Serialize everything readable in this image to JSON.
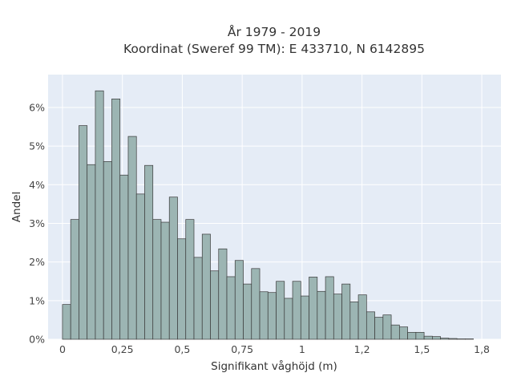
{
  "chart_data": {
    "type": "bar",
    "title_lines": [
      "År 1979 - 2019",
      "Koordinat (Sweref 99 TM): E 433710, N 6142895"
    ],
    "xlabel": "Signifikant våghöjd (m)",
    "ylabel": "Andel",
    "xlim": [
      -0.06,
      1.83
    ],
    "ylim": [
      0,
      0.0685
    ],
    "x_ticks": [
      {
        "value": 0,
        "label": "0"
      },
      {
        "value": 0.25,
        "label": "0,25"
      },
      {
        "value": 0.5,
        "label": "0,5"
      },
      {
        "value": 0.75,
        "label": "0,75"
      },
      {
        "value": 1,
        "label": "1"
      },
      {
        "value": 1.25,
        "label": "1,2"
      },
      {
        "value": 1.5,
        "label": "1,5"
      },
      {
        "value": 1.75,
        "label": "1,8"
      }
    ],
    "y_ticks": [
      {
        "value": 0,
        "label": "0%"
      },
      {
        "value": 0.01,
        "label": "1%"
      },
      {
        "value": 0.02,
        "label": "2%"
      },
      {
        "value": 0.03,
        "label": "3%"
      },
      {
        "value": 0.04,
        "label": "4%"
      },
      {
        "value": 0.05,
        "label": "5%"
      },
      {
        "value": 0.06,
        "label": "6%"
      }
    ],
    "grid": true,
    "bin_width": 0.0343,
    "bin_starts": [
      0,
      0.0343,
      0.0686,
      0.1029,
      0.1372,
      0.1715,
      0.2058,
      0.2401,
      0.2744,
      0.3087,
      0.343,
      0.3773,
      0.4116,
      0.4459,
      0.4802,
      0.5145,
      0.5488,
      0.5831,
      0.6174,
      0.6517,
      0.686,
      0.7203,
      0.7546,
      0.7889,
      0.8232,
      0.8575,
      0.8918,
      0.9261,
      0.9604,
      0.9947,
      1.029,
      1.0633,
      1.0976,
      1.1319,
      1.1662,
      1.2005,
      1.2348,
      1.2691,
      1.3034,
      1.3377,
      1.372,
      1.4063,
      1.4406,
      1.4749,
      1.5092,
      1.5435,
      1.5778,
      1.6121,
      1.6464,
      1.6807
    ],
    "values": [
      0.009,
      0.031,
      0.0553,
      0.0452,
      0.0643,
      0.046,
      0.0622,
      0.0425,
      0.0525,
      0.0376,
      0.045,
      0.031,
      0.0303,
      0.0368,
      0.026,
      0.031,
      0.0212,
      0.0272,
      0.0177,
      0.0234,
      0.0162,
      0.0204,
      0.0143,
      0.0183,
      0.0123,
      0.0121,
      0.015,
      0.0106,
      0.015,
      0.0112,
      0.0161,
      0.0124,
      0.0162,
      0.0117,
      0.0143,
      0.0097,
      0.0115,
      0.0071,
      0.0057,
      0.0063,
      0.0037,
      0.0032,
      0.0018,
      0.0018,
      0.0008,
      0.0007,
      0.0003,
      0.0002,
      0.0001,
      0.0001
    ],
    "colors": {
      "plot_bg": "#e5ecf6",
      "bar_fill": "#9cb5b3",
      "bar_stroke": "#3a3a3a",
      "grid": "#ffffff"
    }
  }
}
